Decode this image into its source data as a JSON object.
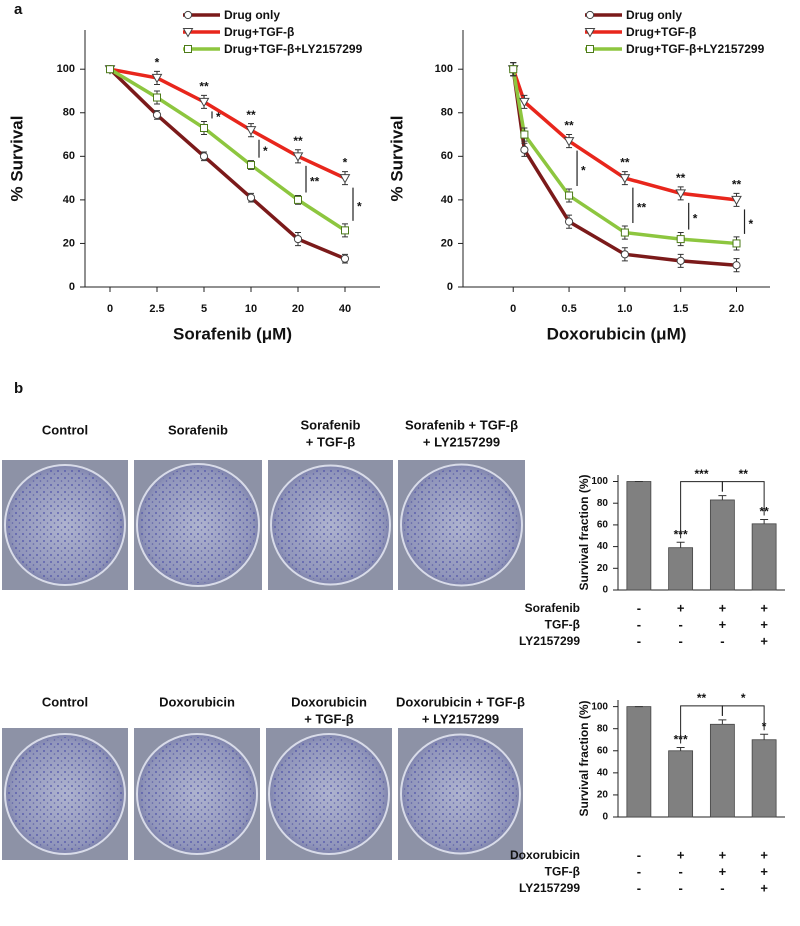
{
  "panel_labels": [
    "a",
    "b"
  ],
  "photo_rows": [
    {
      "labels": [
        [
          "Control"
        ],
        [
          "Sorafenib"
        ],
        [
          "Sorafenib",
          "+ TGF-β"
        ],
        [
          "Sorafenib + TGF-β",
          "+ LY2157299"
        ]
      ]
    },
    {
      "labels": [
        [
          "Control"
        ],
        [
          "Doxorubicin"
        ],
        [
          "Doxorubicin",
          "+ TGF-β"
        ],
        [
          "Doxorubicin + TGF-β",
          "+ LY2157299"
        ]
      ]
    }
  ],
  "chart_data": [
    {
      "type": "line",
      "xlabel": "Sorafenib (μM)",
      "ylabel": "% Survival",
      "categories": [
        "0",
        "2.5",
        "5",
        "10",
        "20",
        "40"
      ],
      "ylim": [
        0,
        118
      ],
      "yticks": [
        0,
        20,
        40,
        60,
        80,
        100
      ],
      "series": [
        {
          "name": "Drug only",
          "color": "#7b1a1a",
          "marker": "circle",
          "values": [
            100,
            79,
            60,
            41,
            22,
            13
          ],
          "errors": [
            1,
            2,
            2,
            2,
            3,
            2
          ]
        },
        {
          "name": "Drug+TGF-β",
          "color": "#e8261c",
          "marker": "triangle-down",
          "values": [
            100,
            96,
            85,
            72,
            60,
            50
          ],
          "errors": [
            1,
            3,
            3,
            3,
            3,
            3
          ],
          "annotations": [
            null,
            "*",
            "**",
            "**",
            "**",
            "*"
          ]
        },
        {
          "name": "Drug+TGF-β+LY2157299",
          "color": "#8dc63f",
          "marker": "square",
          "values": [
            100,
            87,
            73,
            56,
            40,
            26
          ],
          "errors": [
            1,
            3,
            3,
            2,
            2,
            3
          ],
          "comparison_labels": [
            null,
            null,
            "*",
            "*",
            "**",
            "*"
          ]
        }
      ]
    },
    {
      "type": "line",
      "xlabel": "Doxorubicin (μM)",
      "ylabel": "% Survival",
      "x": [
        0,
        0.1,
        0.5,
        1,
        1.5,
        2
      ],
      "xlim": [
        -0.45,
        2.3
      ],
      "xticks": [
        0,
        0.5,
        {
          "value": 1,
          "label": "1.0"
        },
        1.5,
        {
          "value": 2,
          "label": "2.0"
        }
      ],
      "ylim": [
        0,
        118
      ],
      "yticks": [
        0,
        20,
        40,
        60,
        80,
        100
      ],
      "series": [
        {
          "name": "Drug only",
          "color": "#7b1a1a",
          "marker": "circle",
          "values": [
            100,
            63,
            30,
            15,
            12,
            10
          ],
          "errors": [
            3,
            3,
            3,
            3,
            3,
            3
          ]
        },
        {
          "name": "Drug+TGF-β",
          "color": "#e8261c",
          "marker": "triangle-down",
          "values": [
            100,
            85,
            67,
            50,
            43,
            40
          ],
          "errors": [
            3,
            3,
            3,
            3,
            3,
            3
          ],
          "annotations": [
            null,
            null,
            "**",
            "**",
            "**",
            "**"
          ]
        },
        {
          "name": "Drug+TGF-β+LY2157299",
          "color": "#8dc63f",
          "marker": "square",
          "values": [
            100,
            70,
            42,
            25,
            22,
            20
          ],
          "errors": [
            3,
            3,
            3,
            3,
            3,
            3
          ],
          "comparison_labels": [
            null,
            null,
            "*",
            "**",
            "*",
            "*"
          ]
        }
      ]
    },
    {
      "type": "bar",
      "ylabel": "Survival fraction (%)",
      "color": "#808080",
      "ylim": [
        0,
        106
      ],
      "yticks": [
        0,
        20,
        40,
        60,
        80,
        100
      ],
      "values": [
        100,
        39,
        83,
        61
      ],
      "errors": [
        0,
        5,
        4,
        4
      ],
      "annotations": [
        null,
        "***",
        null,
        "**"
      ],
      "comparisons": [
        {
          "from": 1,
          "to": 2,
          "label": "***"
        },
        {
          "from": 2,
          "to": 3,
          "label": "**"
        }
      ],
      "treatments": [
        {
          "name": "Sorafenib",
          "signs": [
            "-",
            "+",
            "+",
            "+"
          ]
        },
        {
          "name": "TGF-β",
          "signs": [
            "-",
            "-",
            "+",
            "+"
          ]
        },
        {
          "name": "LY2157299",
          "signs": [
            "-",
            "-",
            "-",
            "+"
          ]
        }
      ]
    },
    {
      "type": "bar",
      "ylabel": "Survival fraction (%)",
      "color": "#808080",
      "ylim": [
        0,
        106
      ],
      "yticks": [
        0,
        20,
        40,
        60,
        80,
        100
      ],
      "values": [
        100,
        60,
        84,
        70
      ],
      "errors": [
        0,
        3,
        4,
        5
      ],
      "annotations": [
        null,
        "***",
        null,
        "*"
      ],
      "comparisons": [
        {
          "from": 1,
          "to": 2,
          "label": "**"
        },
        {
          "from": 2,
          "to": 3,
          "label": "*"
        }
      ],
      "treatments": [
        {
          "name": "Doxorubicin",
          "signs": [
            "-",
            "+",
            "+",
            "+"
          ]
        },
        {
          "name": "TGF-β",
          "signs": [
            "-",
            "-",
            "+",
            "+"
          ]
        },
        {
          "name": "LY2157299",
          "signs": [
            "-",
            "-",
            "-",
            "+"
          ]
        }
      ]
    }
  ]
}
